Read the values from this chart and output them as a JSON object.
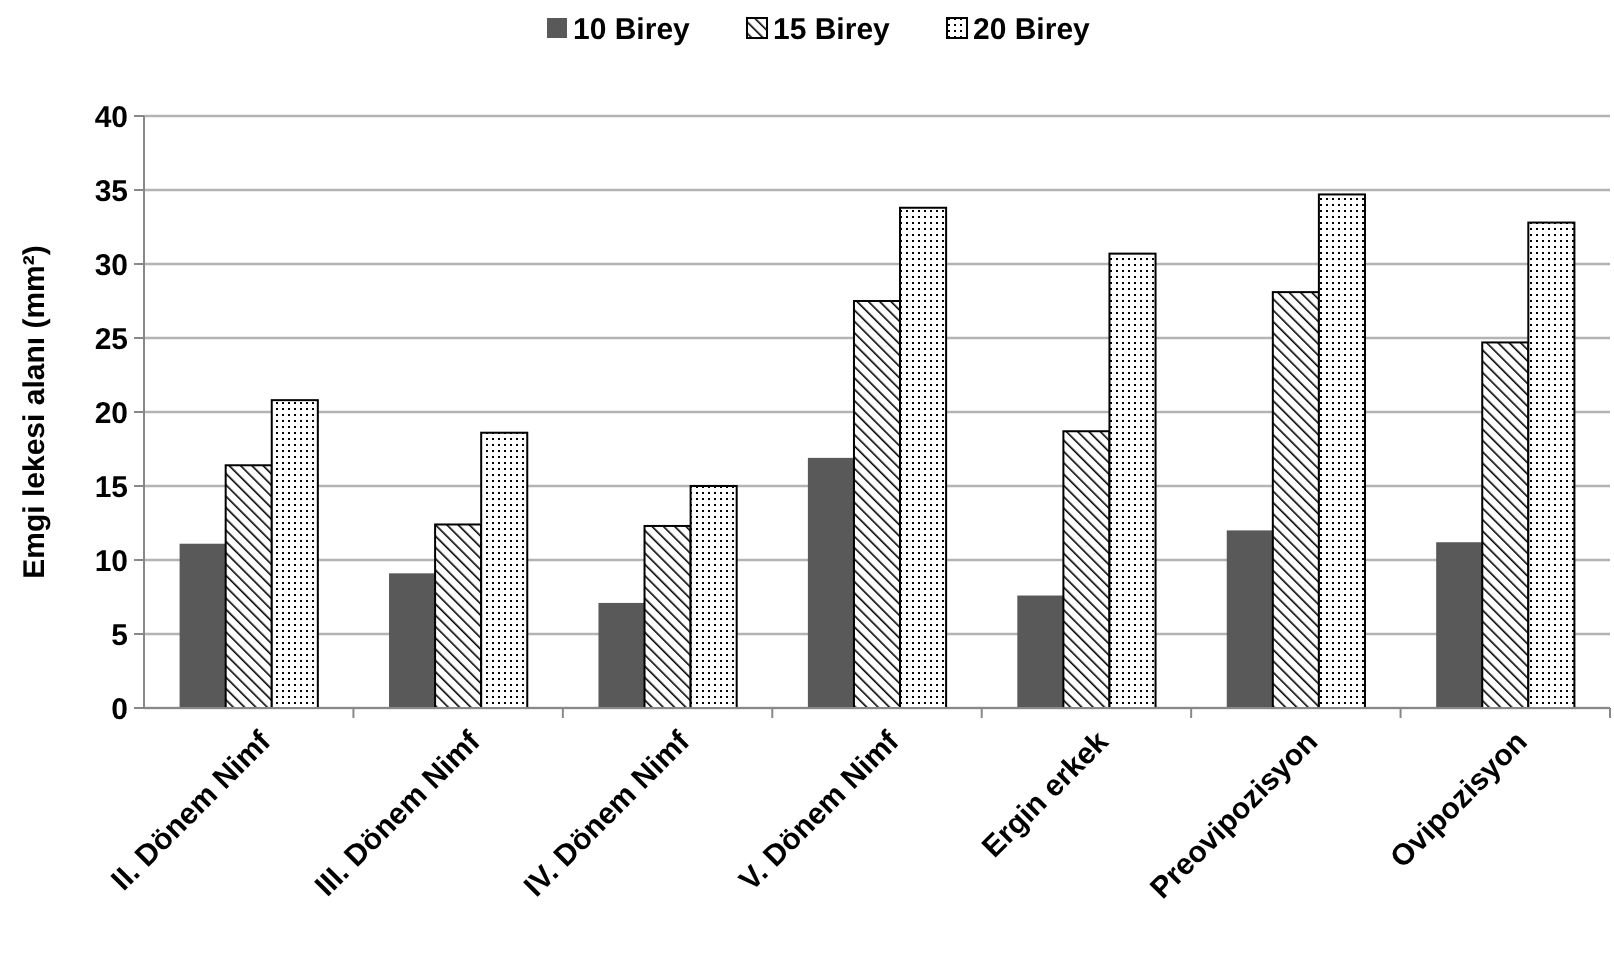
{
  "chart_data": {
    "type": "bar",
    "ylabel": "Emgi lekesi alanı (mm²)",
    "categories": [
      "II. Dönem Nimf",
      "III. Dönem Nimf",
      "IV. Dönem Nimf",
      "V. Dönem Nimf",
      "Ergin erkek",
      "Preovipozisyon",
      "Ovipozisyon"
    ],
    "series": [
      {
        "name": "10 Birey",
        "color": "#595959",
        "values": [
          11.1,
          9.1,
          7.1,
          16.9,
          7.6,
          12.0,
          11.2
        ]
      },
      {
        "name": "15 Birey",
        "color": "#000000",
        "values": [
          16.4,
          12.4,
          12.3,
          27.5,
          18.7,
          28.1,
          24.7
        ]
      },
      {
        "name": "20 Birey",
        "color": "#000000",
        "values": [
          20.8,
          18.6,
          15.0,
          33.8,
          30.7,
          34.7,
          32.8
        ]
      }
    ],
    "ylim": [
      0,
      40
    ],
    "yticks": [
      0,
      5,
      10,
      15,
      20,
      25,
      30,
      35,
      40
    ],
    "grid": "y",
    "legend": "top"
  }
}
